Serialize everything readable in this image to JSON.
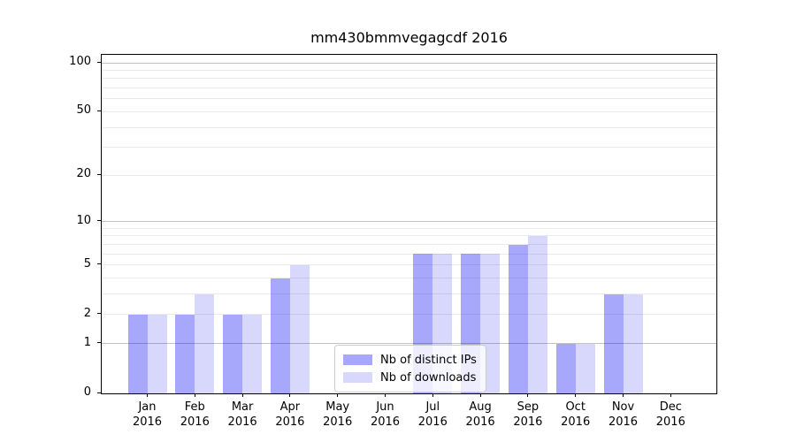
{
  "chart_data": {
    "type": "bar",
    "title": "mm430bmmvegagcdf 2016",
    "categories": [
      "Jan 2016",
      "Feb 2016",
      "Mar 2016",
      "Apr 2016",
      "May 2016",
      "Jun 2016",
      "Jul 2016",
      "Aug 2016",
      "Sep 2016",
      "Oct 2016",
      "Nov 2016",
      "Dec 2016"
    ],
    "series": [
      {
        "name": "Nb of distinct IPs",
        "key": "distinct-ips",
        "fill": "rgba(10,10,245,0.36)",
        "swatch": "#a7a7fb",
        "values": [
          2,
          2,
          2,
          4,
          0,
          0,
          6,
          6,
          7,
          1,
          3,
          0
        ]
      },
      {
        "name": "Nb of downloads",
        "key": "downloads",
        "fill": "rgba(10,10,245,0.16)",
        "swatch": "#d8d8fd",
        "values": [
          2,
          3,
          2,
          5,
          0,
          0,
          6,
          6,
          8,
          1,
          3,
          0
        ]
      }
    ],
    "yscale": "log1p",
    "ylim": [
      0,
      113
    ],
    "y_tick_labels": [
      0,
      1,
      2,
      5,
      10,
      20,
      50,
      100
    ],
    "y_grid_major": [
      1,
      10,
      100
    ],
    "y_grid_minor": [
      2,
      3,
      4,
      5,
      6,
      7,
      8,
      9,
      20,
      30,
      40,
      50,
      60,
      70,
      80,
      90
    ],
    "grid": "horizontal, major and minor, behind translucent bars",
    "legend_position": "lower center inside plot",
    "colors": {
      "bar_dark": "#a7a7fb",
      "bar_light": "#d8d8fd",
      "grid_major": "#c3c3c3",
      "grid_minor": "#eaeaea",
      "spine": "#000000",
      "background": "#ffffff"
    }
  }
}
